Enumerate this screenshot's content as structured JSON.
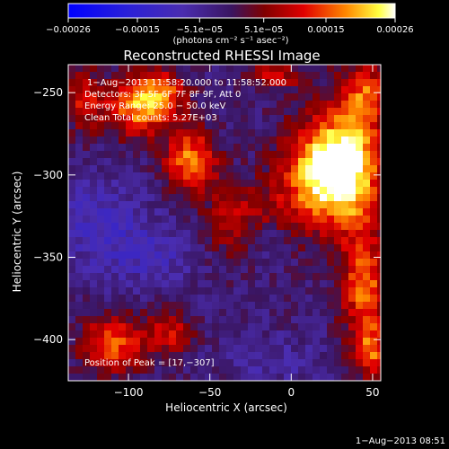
{
  "chart_data": {
    "type": "heatmap",
    "title": "Reconstructed RHESSI Image",
    "xlabel": "Heliocentric X (arcsec)",
    "ylabel": "Heliocentric Y (arcsec)",
    "xlim": [
      -137,
      55
    ],
    "ylim": [
      -425,
      -233
    ],
    "x_ticks": [
      -100,
      -50,
      0,
      50
    ],
    "x_tick_labels": [
      "−100",
      "−50",
      "0",
      "50"
    ],
    "y_ticks": [
      -250,
      -300,
      -350,
      -400
    ],
    "y_tick_labels": [
      "−250",
      "−300",
      "−350",
      "−400"
    ],
    "colorbar": {
      "min": -0.00026,
      "max": 0.00026,
      "tick_values": [
        -0.00026,
        -0.00015,
        -5.1e-05,
        5.1e-05,
        0.00015,
        0.00026
      ],
      "tick_labels": [
        "−0.00026",
        "−0.00015",
        "−5.1e−05",
        "5.1e−05",
        "0.00015",
        "0.00026"
      ],
      "units": "(photons cm⁻² s⁻¹ asec⁻²)"
    },
    "annotations": [
      "1−Aug−2013 11:58:20.000 to 11:58:52.000",
      "Detectors: 3F 5F 6F 7F 8F 9F, Att 0",
      "Energy Range: 25.0 − 50.0 keV",
      "Clean   Total counts: 5.27E+03"
    ],
    "peak_label": "Position of Peak = [17,−307]",
    "peak": {
      "x": 17,
      "y": -307
    },
    "sources": [
      {
        "x": 20,
        "y": -300,
        "amp": 0.00026,
        "sx": 18,
        "sy": 22
      },
      {
        "x": 38,
        "y": -290,
        "amp": 0.00017,
        "sx": 14,
        "sy": 30
      },
      {
        "x": -62,
        "y": -292,
        "amp": 0.0002,
        "sx": 11,
        "sy": 14
      },
      {
        "x": -95,
        "y": -260,
        "amp": 0.00018,
        "sx": 14,
        "sy": 13
      },
      {
        "x": -80,
        "y": -250,
        "amp": 0.00014,
        "sx": 12,
        "sy": 10
      },
      {
        "x": -128,
        "y": -255,
        "amp": 0.00012,
        "sx": 8,
        "sy": 14
      },
      {
        "x": -110,
        "y": -405,
        "amp": 0.00018,
        "sx": 14,
        "sy": 12
      },
      {
        "x": -75,
        "y": -398,
        "amp": 0.00012,
        "sx": 10,
        "sy": 10
      },
      {
        "x": 45,
        "y": -370,
        "amp": 0.00018,
        "sx": 10,
        "sy": 24
      },
      {
        "x": 50,
        "y": -410,
        "amp": 0.00015,
        "sx": 8,
        "sy": 12
      },
      {
        "x": 48,
        "y": -250,
        "amp": 0.00013,
        "sx": 9,
        "sy": 12
      },
      {
        "x": -10,
        "y": -240,
        "amp": 0.00012,
        "sx": 12,
        "sy": 6
      },
      {
        "x": -20,
        "y": -325,
        "amp": 8e-05,
        "sx": 16,
        "sy": 14
      },
      {
        "x": -40,
        "y": -330,
        "amp": 6e-05,
        "sx": 10,
        "sy": 18
      },
      {
        "x": -120,
        "y": -330,
        "amp": -7e-05,
        "sx": 20,
        "sy": 20
      },
      {
        "x": -85,
        "y": -350,
        "amp": -6e-05,
        "sx": 18,
        "sy": 14
      },
      {
        "x": -15,
        "y": -338,
        "amp": -6e-05,
        "sx": 8,
        "sy": 8
      },
      {
        "x": -10,
        "y": -415,
        "amp": -4e-05,
        "sx": 20,
        "sy": 10
      }
    ],
    "grid": false
  },
  "footer": {
    "timestamp": "1−Aug−2013 08:51"
  },
  "colors": {
    "background": "#000000",
    "foreground": "#ffffff"
  }
}
